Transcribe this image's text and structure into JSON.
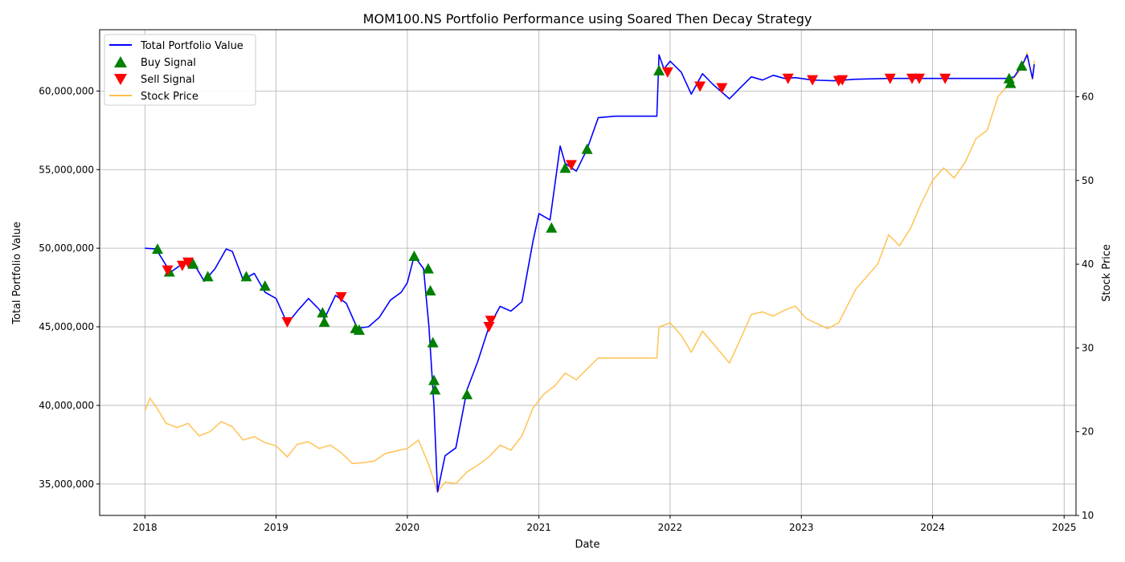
{
  "chart_data": {
    "type": "line",
    "title": "MOM100.NS Portfolio Performance using Soared Then Decay Strategy",
    "xlabel": "Date",
    "ylabel_left": "Total Portfolio Value",
    "ylabel_right": "Stock Price",
    "x_ticks": [
      "2018",
      "2019",
      "2020",
      "2021",
      "2022",
      "2023",
      "2024",
      "2025"
    ],
    "xlim": [
      "2017-08-28",
      "2025-02-03"
    ],
    "ylim_left": [
      33000000,
      63900000
    ],
    "ylim_right": [
      10,
      68
    ],
    "y_ticks_left": [
      "35,000,000",
      "40,000,000",
      "45,000,000",
      "50,000,000",
      "55,000,000",
      "60,000,000"
    ],
    "y_tick_values_left": [
      35000000,
      40000000,
      45000000,
      50000000,
      55000000,
      60000000
    ],
    "y_ticks_right": [
      "10",
      "20",
      "30",
      "40",
      "50",
      "60"
    ],
    "y_tick_values_right": [
      10,
      20,
      30,
      40,
      50,
      60
    ],
    "grid": true,
    "legend_placement": "top-left",
    "legend": [
      "Total Portfolio Value",
      "Buy Signal",
      "Sell Signal",
      "Stock Price"
    ],
    "colors": {
      "portfolio": "#0000ff",
      "buy": "#008000",
      "sell": "#ff0000",
      "price": "#ffc04d",
      "overlap": "#a05060"
    },
    "portfolio_series": [
      [
        "2018-01-01",
        50000000
      ],
      [
        "2018-02-01",
        49950000
      ],
      [
        "2018-03-01",
        48900000
      ],
      [
        "2018-03-15",
        48500000
      ],
      [
        "2018-04-15",
        49000000
      ],
      [
        "2018-05-15",
        49100000
      ],
      [
        "2018-06-15",
        47900000
      ],
      [
        "2018-07-15",
        48700000
      ],
      [
        "2018-08-15",
        49950000
      ],
      [
        "2018-09-01",
        49800000
      ],
      [
        "2018-10-01",
        48000000
      ],
      [
        "2018-11-01",
        48400000
      ],
      [
        "2018-12-01",
        47200000
      ],
      [
        "2019-01-01",
        46800000
      ],
      [
        "2019-02-01",
        45200000
      ],
      [
        "2019-03-01",
        46000000
      ],
      [
        "2019-04-01",
        46800000
      ],
      [
        "2019-05-01",
        46100000
      ],
      [
        "2019-05-15",
        45500000
      ],
      [
        "2019-06-15",
        47000000
      ],
      [
        "2019-07-15",
        46500000
      ],
      [
        "2019-08-15",
        44900000
      ],
      [
        "2019-09-15",
        45000000
      ],
      [
        "2019-10-15",
        45600000
      ],
      [
        "2019-11-15",
        46700000
      ],
      [
        "2019-12-15",
        47200000
      ],
      [
        "2020-01-01",
        47800000
      ],
      [
        "2020-01-20",
        49500000
      ],
      [
        "2020-02-15",
        48700000
      ],
      [
        "2020-03-01",
        45000000
      ],
      [
        "2020-03-15",
        40000000
      ],
      [
        "2020-03-25",
        34500000
      ],
      [
        "2020-04-15",
        36800000
      ],
      [
        "2020-05-15",
        37300000
      ],
      [
        "2020-06-15",
        41000000
      ],
      [
        "2020-07-15",
        42800000
      ],
      [
        "2020-08-15",
        45000000
      ],
      [
        "2020-09-15",
        46300000
      ],
      [
        "2020-10-15",
        46000000
      ],
      [
        "2020-11-15",
        46600000
      ],
      [
        "2020-12-15",
        50400000
      ],
      [
        "2021-01-01",
        52200000
      ],
      [
        "2021-02-01",
        51800000
      ],
      [
        "2021-03-01",
        56500000
      ],
      [
        "2021-03-15",
        55400000
      ],
      [
        "2021-04-15",
        54900000
      ],
      [
        "2021-05-15",
        56300000
      ],
      [
        "2021-06-15",
        58300000
      ],
      [
        "2021-08-01",
        58400000
      ],
      [
        "2021-11-25",
        58400000
      ],
      [
        "2021-12-01",
        62300000
      ],
      [
        "2021-12-15",
        61400000
      ],
      [
        "2022-01-01",
        61900000
      ],
      [
        "2022-02-01",
        61200000
      ],
      [
        "2022-03-01",
        59800000
      ],
      [
        "2022-04-01",
        61100000
      ],
      [
        "2022-05-01",
        60400000
      ],
      [
        "2022-06-15",
        59500000
      ],
      [
        "2022-07-15",
        60200000
      ],
      [
        "2022-08-15",
        60900000
      ],
      [
        "2022-09-15",
        60700000
      ],
      [
        "2022-10-15",
        61000000
      ],
      [
        "2022-11-15",
        60800000
      ],
      [
        "2022-12-15",
        60850000
      ],
      [
        "2023-02-01",
        60700000
      ],
      [
        "2023-04-01",
        60650000
      ],
      [
        "2023-06-01",
        60750000
      ],
      [
        "2023-09-01",
        60800000
      ],
      [
        "2024-03-01",
        60800000
      ],
      [
        "2024-07-31",
        60800000
      ],
      [
        "2024-08-15",
        60900000
      ],
      [
        "2024-09-10",
        61800000
      ],
      [
        "2024-09-20",
        62300000
      ],
      [
        "2024-10-05",
        60800000
      ],
      [
        "2024-10-10",
        61700000
      ]
    ],
    "price_series": [
      [
        "2018-01-01",
        22.5
      ],
      [
        "2018-01-15",
        24
      ],
      [
        "2018-02-01",
        23
      ],
      [
        "2018-03-01",
        21
      ],
      [
        "2018-04-01",
        20.5
      ],
      [
        "2018-05-01",
        21
      ],
      [
        "2018-06-01",
        19.5
      ],
      [
        "2018-07-01",
        20
      ],
      [
        "2018-08-01",
        21.2
      ],
      [
        "2018-09-01",
        20.6
      ],
      [
        "2018-10-01",
        19
      ],
      [
        "2018-11-01",
        19.4
      ],
      [
        "2018-12-01",
        18.7
      ],
      [
        "2019-01-01",
        18.3
      ],
      [
        "2019-02-01",
        17
      ],
      [
        "2019-03-01",
        18.5
      ],
      [
        "2019-04-01",
        18.8
      ],
      [
        "2019-05-01",
        18
      ],
      [
        "2019-06-01",
        18.4
      ],
      [
        "2019-07-01",
        17.5
      ],
      [
        "2019-08-01",
        16.2
      ],
      [
        "2019-09-01",
        16.3
      ],
      [
        "2019-10-01",
        16.5
      ],
      [
        "2019-11-01",
        17.4
      ],
      [
        "2019-12-01",
        17.7
      ],
      [
        "2020-01-01",
        18
      ],
      [
        "2020-02-01",
        19
      ],
      [
        "2020-03-01",
        16
      ],
      [
        "2020-03-25",
        12.8
      ],
      [
        "2020-04-15",
        14
      ],
      [
        "2020-05-15",
        13.8
      ],
      [
        "2020-06-15",
        15.2
      ],
      [
        "2020-07-15",
        16
      ],
      [
        "2020-08-15",
        17
      ],
      [
        "2020-09-15",
        18.4
      ],
      [
        "2020-10-15",
        17.8
      ],
      [
        "2020-11-15",
        19.5
      ],
      [
        "2020-12-15",
        22.8
      ],
      [
        "2021-01-15",
        24.5
      ],
      [
        "2021-02-15",
        25.5
      ],
      [
        "2021-03-15",
        27
      ],
      [
        "2021-04-15",
        26.2
      ],
      [
        "2021-05-15",
        27.5
      ],
      [
        "2021-06-15",
        28.8
      ],
      [
        "2021-08-01",
        28.8
      ],
      [
        "2021-11-25",
        28.8
      ],
      [
        "2021-12-01",
        32.5
      ],
      [
        "2022-01-01",
        33
      ],
      [
        "2022-02-01",
        31.5
      ],
      [
        "2022-03-01",
        29.5
      ],
      [
        "2022-04-01",
        32
      ],
      [
        "2022-05-01",
        30.5
      ],
      [
        "2022-06-15",
        28.2
      ],
      [
        "2022-07-15",
        31
      ],
      [
        "2022-08-15",
        34
      ],
      [
        "2022-09-15",
        34.3
      ],
      [
        "2022-10-15",
        33.8
      ],
      [
        "2022-11-15",
        34.5
      ],
      [
        "2022-12-15",
        35
      ],
      [
        "2023-01-15",
        33.5
      ],
      [
        "2023-03-15",
        32.3
      ],
      [
        "2023-04-15",
        33
      ],
      [
        "2023-06-01",
        37
      ],
      [
        "2023-08-01",
        40
      ],
      [
        "2023-09-01",
        43.5
      ],
      [
        "2023-10-01",
        42.2
      ],
      [
        "2023-11-01",
        44.3
      ],
      [
        "2023-12-01",
        47.3
      ],
      [
        "2024-01-01",
        50
      ],
      [
        "2024-02-01",
        51.5
      ],
      [
        "2024-03-01",
        50.3
      ],
      [
        "2024-04-01",
        52.2
      ],
      [
        "2024-05-01",
        55
      ],
      [
        "2024-06-01",
        56
      ],
      [
        "2024-07-01",
        60
      ],
      [
        "2024-08-01",
        61.5
      ],
      [
        "2024-09-01",
        63.2
      ],
      [
        "2024-09-20",
        65.2
      ],
      [
        "2024-10-05",
        62
      ],
      [
        "2024-10-10",
        64.3
      ]
    ],
    "buy_signals": [
      [
        "2018-02-05",
        49950000
      ],
      [
        "2018-03-10",
        48500000
      ],
      [
        "2018-05-15",
        49000000
      ],
      [
        "2018-06-25",
        48200000
      ],
      [
        "2018-10-10",
        48200000
      ],
      [
        "2018-12-01",
        47600000
      ],
      [
        "2019-05-10",
        45900000
      ],
      [
        "2019-05-15",
        45300000
      ],
      [
        "2019-08-10",
        44900000
      ],
      [
        "2019-08-20",
        44800000
      ],
      [
        "2020-01-20",
        49500000
      ],
      [
        "2020-02-28",
        48700000
      ],
      [
        "2020-03-05",
        47300000
      ],
      [
        "2020-03-12",
        44000000
      ],
      [
        "2020-03-15",
        41600000
      ],
      [
        "2020-03-18",
        41000000
      ],
      [
        "2020-06-15",
        40700000
      ],
      [
        "2021-02-05",
        51300000
      ],
      [
        "2021-03-15",
        55100000
      ],
      [
        "2021-05-15",
        56300000
      ],
      [
        "2021-12-01",
        61300000
      ],
      [
        "2024-08-01",
        60800000
      ],
      [
        "2024-08-05",
        60500000
      ],
      [
        "2024-09-05",
        61600000
      ]
    ],
    "sell_signals": [
      [
        "2018-03-05",
        48600000
      ],
      [
        "2018-04-15",
        48900000
      ],
      [
        "2018-05-01",
        49100000
      ],
      [
        "2019-02-01",
        45300000
      ],
      [
        "2019-07-01",
        46900000
      ],
      [
        "2020-08-15",
        45000000
      ],
      [
        "2020-08-20",
        45400000
      ],
      [
        "2021-04-01",
        55300000
      ],
      [
        "2021-12-25",
        61200000
      ],
      [
        "2022-03-25",
        60300000
      ],
      [
        "2022-05-25",
        60200000
      ],
      [
        "2022-11-25",
        60800000
      ],
      [
        "2023-02-01",
        60700000
      ],
      [
        "2023-04-15",
        60650000
      ],
      [
        "2023-04-25",
        60700000
      ],
      [
        "2023-09-05",
        60800000
      ],
      [
        "2023-11-05",
        60800000
      ],
      [
        "2023-11-25",
        60800000
      ],
      [
        "2024-02-05",
        60800000
      ]
    ]
  }
}
